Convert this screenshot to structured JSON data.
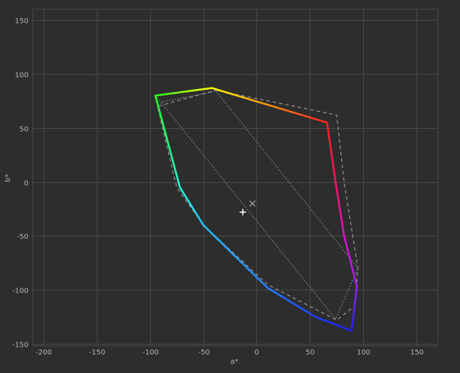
{
  "chart_data": {
    "type": "line",
    "title": "",
    "xlabel": "a*",
    "ylabel": "b*",
    "xlim": [
      -210,
      170
    ],
    "ylim": [
      -152,
      160
    ],
    "x_ticks": [
      -200,
      -150,
      -100,
      -50,
      0,
      50,
      100,
      150
    ],
    "x_tick_labels": [
      "-200",
      "-150",
      "-100",
      "-50",
      "0",
      "50",
      "100",
      "150"
    ],
    "y_ticks": [
      -150,
      -100,
      -50,
      0,
      50,
      100,
      150
    ],
    "y_tick_labels": [
      "-150",
      "-100",
      "-50",
      "0",
      "50",
      "100",
      "150"
    ],
    "grid": true,
    "colors": {
      "background": "#2d2d2d",
      "grid": "#4a4a4a",
      "tick_text": "#b4b4b4",
      "reference": "#9a9a9a",
      "marker_plus": "#ffffff",
      "marker_x": "#a0a0a0"
    },
    "gamut_boundary": [
      {
        "a": -42,
        "b": 87,
        "color": "#ffff00"
      },
      {
        "a": 66,
        "b": 55,
        "color": "#ff2020"
      },
      {
        "a": 74,
        "b": 0,
        "color": "#ff1060"
      },
      {
        "a": 82,
        "b": -50,
        "color": "#e010d0"
      },
      {
        "a": 94,
        "b": -97,
        "color": "#a020f0"
      },
      {
        "a": 89,
        "b": -138,
        "color": "#2020ff"
      },
      {
        "a": 55,
        "b": -125,
        "color": "#2040ff"
      },
      {
        "a": 10,
        "b": -98,
        "color": "#2080ff"
      },
      {
        "a": -50,
        "b": -40,
        "color": "#20c0ff"
      },
      {
        "a": -72,
        "b": -5,
        "color": "#20ffd0"
      },
      {
        "a": -95,
        "b": 80,
        "color": "#20ff20"
      },
      {
        "a": -42,
        "b": 87,
        "color": "#ffff00"
      }
    ],
    "reference_dashed": [
      {
        "a": -38,
        "b": 85
      },
      {
        "a": 75,
        "b": 62
      },
      {
        "a": 82,
        "b": 0
      },
      {
        "a": 95,
        "b": -80
      },
      {
        "a": 92,
        "b": -115
      },
      {
        "a": 75,
        "b": -128
      },
      {
        "a": 10,
        "b": -95
      },
      {
        "a": -50,
        "b": -40
      },
      {
        "a": -75,
        "b": -5
      },
      {
        "a": -93,
        "b": 70
      }
    ],
    "reference_dotted": [
      {
        "a": -95,
        "b": 80
      },
      {
        "a": -90,
        "b": 74
      },
      {
        "a": -38,
        "b": 84
      },
      {
        "a": 95,
        "b": -80
      },
      {
        "a": 74,
        "b": -127
      },
      {
        "a": -90,
        "b": 74
      }
    ],
    "markers": [
      {
        "type": "plus",
        "a": -13,
        "b": -28
      },
      {
        "type": "x",
        "a": -4,
        "b": -20
      }
    ]
  }
}
